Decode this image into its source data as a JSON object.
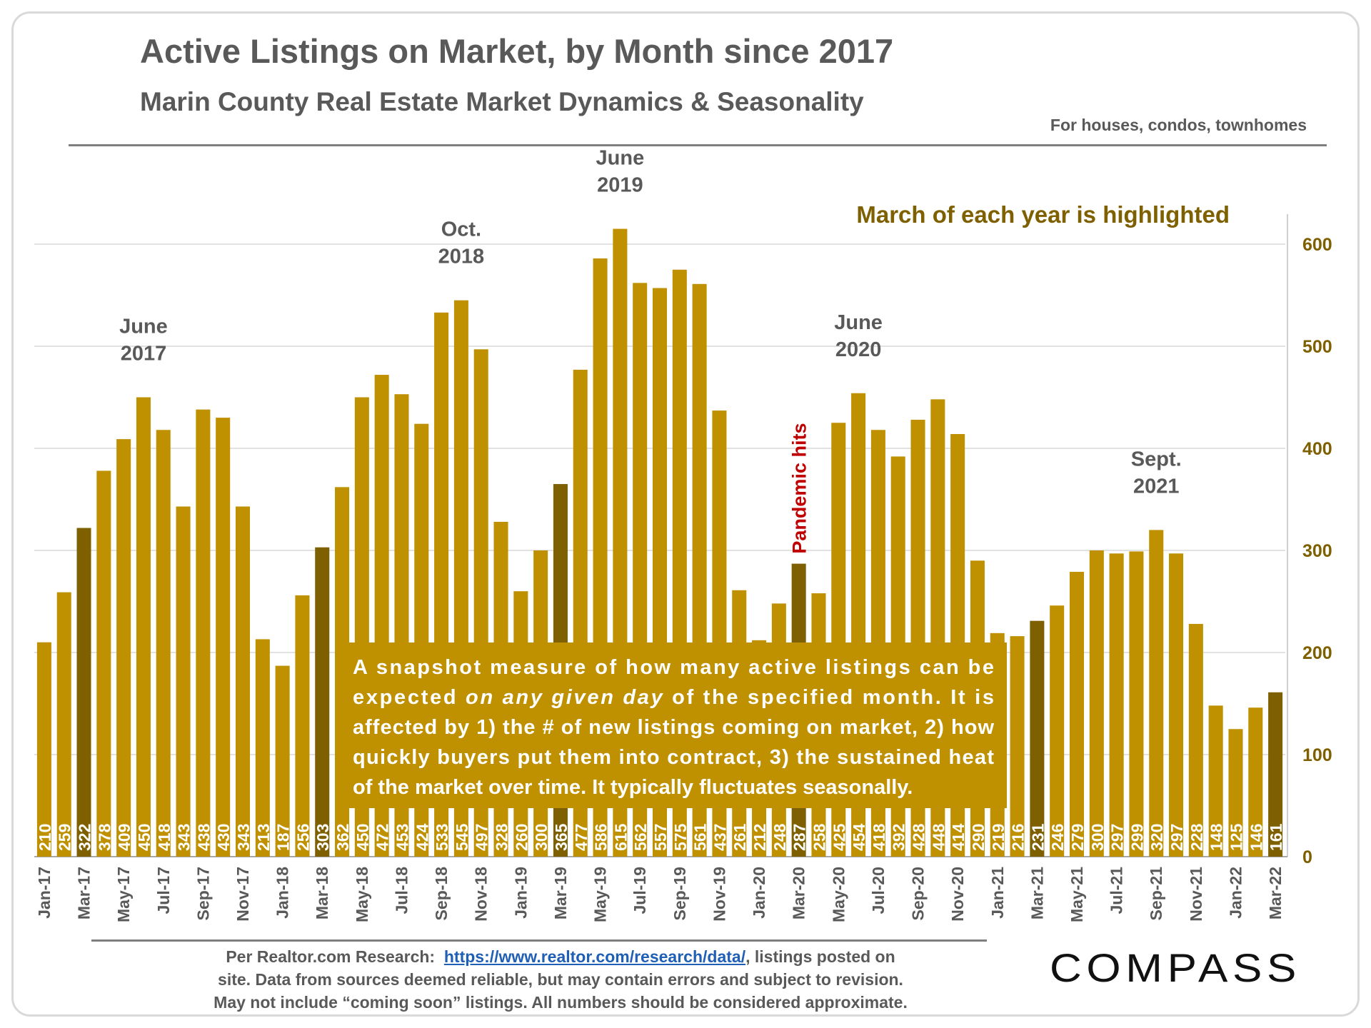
{
  "header": {
    "title": "Active Listings on Market, by Month since 2017",
    "subtitle": "Marin County Real Estate Market Dynamics & Seasonality",
    "scope_note": "For houses, condos, townhomes"
  },
  "colors": {
    "bar": "#bf9000",
    "bar_highlight": "#7f6000",
    "grid": "#d9d9d9",
    "axis_text": "#7f6000",
    "annotation_text": "#595959",
    "pandemic_text": "#c00000",
    "callout_bg": "#bf9000"
  },
  "chart_data": {
    "type": "bar",
    "title": "Active Listings on Market, by Month since 2017",
    "xlabel": "",
    "ylabel": "",
    "ylim": [
      0,
      600
    ],
    "yticks": [
      0,
      100,
      200,
      300,
      400,
      500,
      600
    ],
    "y_axis_side": "right",
    "grid": true,
    "categories": [
      "Jan-17",
      "Feb-17",
      "Mar-17",
      "Apr-17",
      "May-17",
      "Jun-17",
      "Jul-17",
      "Aug-17",
      "Sep-17",
      "Oct-17",
      "Nov-17",
      "Dec-17",
      "Jan-18",
      "Feb-18",
      "Mar-18",
      "Apr-18",
      "May-18",
      "Jun-18",
      "Jul-18",
      "Aug-18",
      "Sep-18",
      "Oct-18",
      "Nov-18",
      "Dec-18",
      "Jan-19",
      "Feb-19",
      "Mar-19",
      "Apr-19",
      "May-19",
      "Jun-19",
      "Jul-19",
      "Aug-19",
      "Sep-19",
      "Oct-19",
      "Nov-19",
      "Dec-19",
      "Jan-20",
      "Feb-20",
      "Mar-20",
      "Apr-20",
      "May-20",
      "Jun-20",
      "Jul-20",
      "Aug-20",
      "Sep-20",
      "Oct-20",
      "Nov-20",
      "Dec-20",
      "Jan-21",
      "Feb-21",
      "Mar-21",
      "Apr-21",
      "May-21",
      "Jun-21",
      "Jul-21",
      "Aug-21",
      "Sep-21",
      "Oct-21",
      "Nov-21",
      "Dec-21",
      "Jan-22",
      "Feb-22",
      "Mar-22"
    ],
    "values": [
      210,
      259,
      322,
      378,
      409,
      450,
      418,
      343,
      438,
      430,
      343,
      213,
      187,
      256,
      303,
      362,
      450,
      472,
      453,
      424,
      533,
      545,
      497,
      328,
      260,
      300,
      365,
      477,
      586,
      615,
      562,
      557,
      575,
      561,
      437,
      261,
      212,
      248,
      287,
      258,
      425,
      454,
      418,
      392,
      428,
      448,
      414,
      290,
      219,
      216,
      231,
      246,
      279,
      300,
      297,
      299,
      320,
      297,
      228,
      148,
      125,
      146,
      161
    ],
    "highlight_label": "March of each year is highlighted",
    "peak_annotations": [
      {
        "category": "Jun-17",
        "lines": [
          "June",
          "2017"
        ]
      },
      {
        "category": "Oct-18",
        "lines": [
          "Oct.",
          "2018"
        ]
      },
      {
        "category": "Jun-19",
        "lines": [
          "June",
          "2019"
        ]
      },
      {
        "category": "Jun-20",
        "lines": [
          "June",
          "2020"
        ]
      },
      {
        "category": "Sep-21",
        "lines": [
          "Sept.",
          "2021"
        ]
      }
    ],
    "event_annotation": {
      "category": "Mar-20",
      "text": "Pandemic hits"
    },
    "callout_lines": [
      [
        "A snapshot measure of how many active listings can be",
        "",
        "",
        false
      ],
      [
        "expected ",
        "on any given day",
        " of the specified month. It is",
        false
      ],
      [
        "affected by 1) the # of new listings coming on market, 2) how",
        "",
        "",
        false
      ],
      [
        "quickly buyers put them into contract, 3) the sustained heat",
        "",
        "",
        false
      ],
      [
        "of the market over time. It typically fluctuates seasonally.",
        "",
        "",
        true
      ]
    ]
  },
  "footer": {
    "lead": "Per Realtor.com Research:",
    "link_text": "https://www.realtor.com/research/data/",
    "line1_tail": ", listings posted on",
    "line2": "site. Data from sources deemed reliable, but may contain errors and subject to revision.",
    "line3": "May not include “coming soon” listings. All numbers should be considered approximate."
  },
  "brand": {
    "logo_text": "COMPASS"
  }
}
